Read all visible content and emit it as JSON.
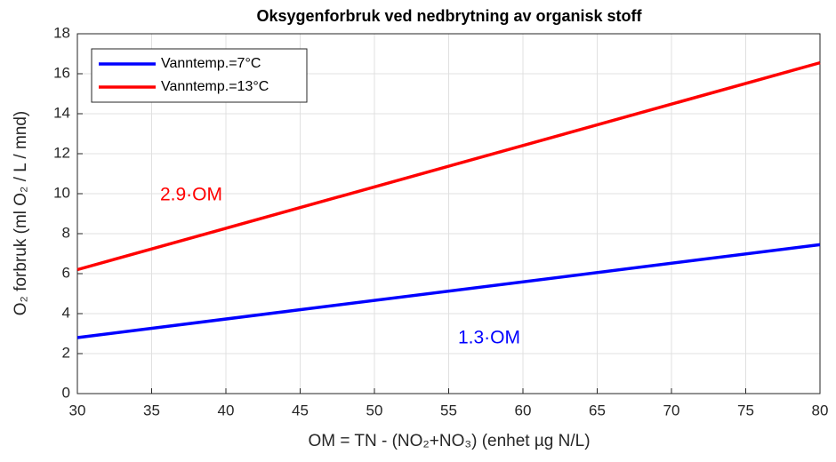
{
  "chart_data": {
    "type": "line",
    "title": "Oksygenforbruk ved nedbrytning av organisk stoff",
    "xlabel": "OM = TN - (NO₂+NO₃) (enhet µg N/L)",
    "ylabel": "O₂ forbruk (ml O₂ / L / mnd)",
    "x": [
      30,
      80
    ],
    "series": [
      {
        "name": "Vanntemp.=7°C",
        "color": "#0000ff",
        "values": [
          2.8,
          7.45
        ]
      },
      {
        "name": "Vanntemp.=13°C",
        "color": "#ff0000",
        "values": [
          6.2,
          16.55
        ]
      }
    ],
    "xlim": [
      30,
      80
    ],
    "xticks": [
      30,
      35,
      40,
      45,
      50,
      55,
      60,
      65,
      70,
      75,
      80
    ],
    "ylim": [
      0,
      18
    ],
    "yticks": [
      0,
      2,
      4,
      6,
      8,
      10,
      12,
      14,
      16,
      18
    ],
    "grid": true,
    "legend": "upper left",
    "annotations": [
      {
        "text": "2.9·OM",
        "color": "#ff0000"
      },
      {
        "text": "1.3·OM",
        "color": "#0000ff"
      }
    ]
  }
}
